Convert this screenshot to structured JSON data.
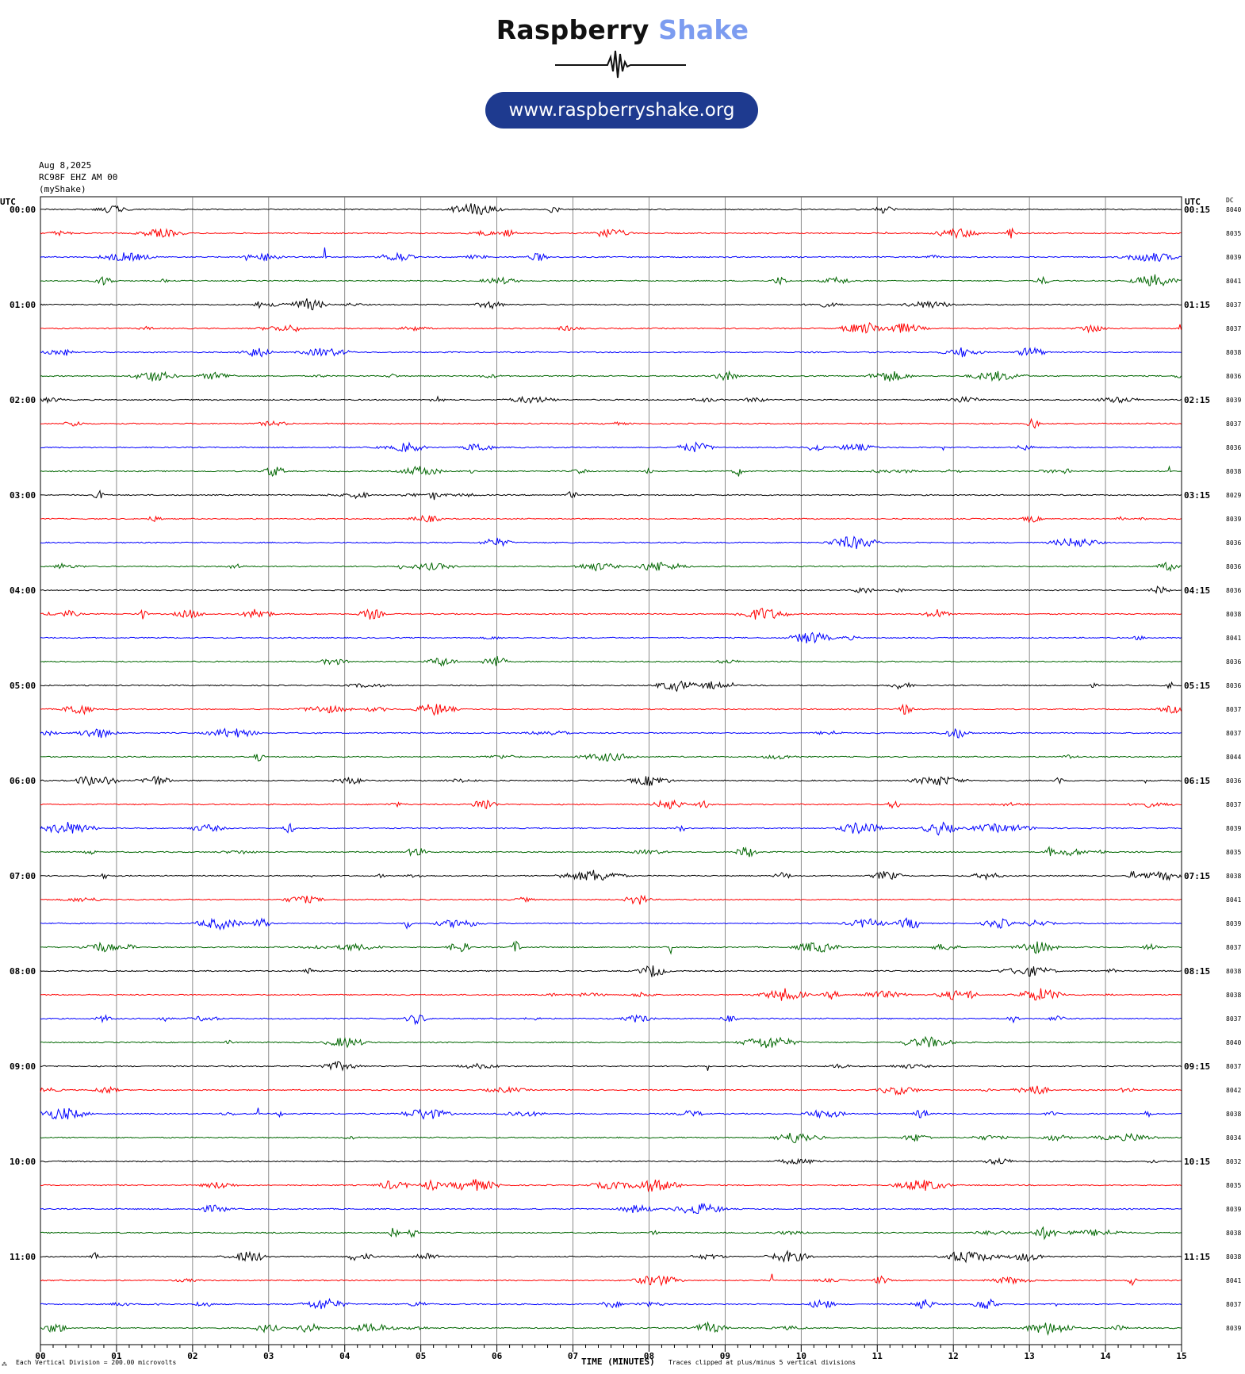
{
  "brand": {
    "name_part1": "Raspberry",
    "name_part2": "Shake",
    "url": "www.raspberryshake.org",
    "logo_icon": "seismogram-wave-icon",
    "accent_color": "#7c9cf0",
    "pill_color": "#1e3a8f"
  },
  "header": {
    "date": "Aug 8,2025",
    "station": "RC98F EHZ AM 00",
    "source": "(myShake)"
  },
  "chart_data": {
    "type": "line",
    "subtype": "helicorder",
    "left_axis_label": "UTC",
    "right_axis_label": "UTC",
    "dc_label": "DC",
    "xlabel": "TIME (MINUTES)",
    "x_ticks": [
      "00",
      "01",
      "02",
      "03",
      "04",
      "05",
      "06",
      "07",
      "08",
      "09",
      "10",
      "11",
      "12",
      "13",
      "14",
      "15"
    ],
    "xlim": [
      0,
      15
    ],
    "left_row_labels": [
      "00:00",
      "01:00",
      "02:00",
      "03:00",
      "04:00",
      "05:00",
      "06:00",
      "07:00",
      "08:00",
      "09:00",
      "10:00",
      "11:00"
    ],
    "right_row_labels": [
      "00:15",
      "01:15",
      "02:15",
      "03:15",
      "04:15",
      "05:15",
      "06:15",
      "07:15",
      "08:15",
      "09:15",
      "10:15",
      "11:15"
    ],
    "dc_offsets": [
      "8040",
      "8035",
      "8039",
      "8041",
      "8037",
      "8037",
      "8038",
      "8036",
      "8039",
      "8037",
      "8036",
      "8038",
      "8029",
      "8039",
      "8036",
      "8036",
      "8036",
      "8038",
      "8041",
      "8036",
      "8036",
      "8037",
      "8037",
      "8044",
      "8036",
      "8037",
      "8039",
      "8035",
      "8038",
      "8041",
      "8039",
      "8037",
      "8038",
      "8038",
      "8037",
      "8040",
      "8037",
      "8042",
      "8038",
      "8034",
      "8032",
      "8035",
      "8039",
      "8038",
      "8038",
      "8041",
      "8037",
      "8039"
    ],
    "trace_colors": [
      "#000000",
      "#ff0000",
      "#0000ff",
      "#006600"
    ],
    "minutes_per_row": 15,
    "rows": 48,
    "footer_left": "Each Vertical Division =  200.00 microvolts",
    "footer_right": "Traces clipped at plus/minus 5 vertical divisions",
    "grid": true,
    "legend": "none"
  }
}
